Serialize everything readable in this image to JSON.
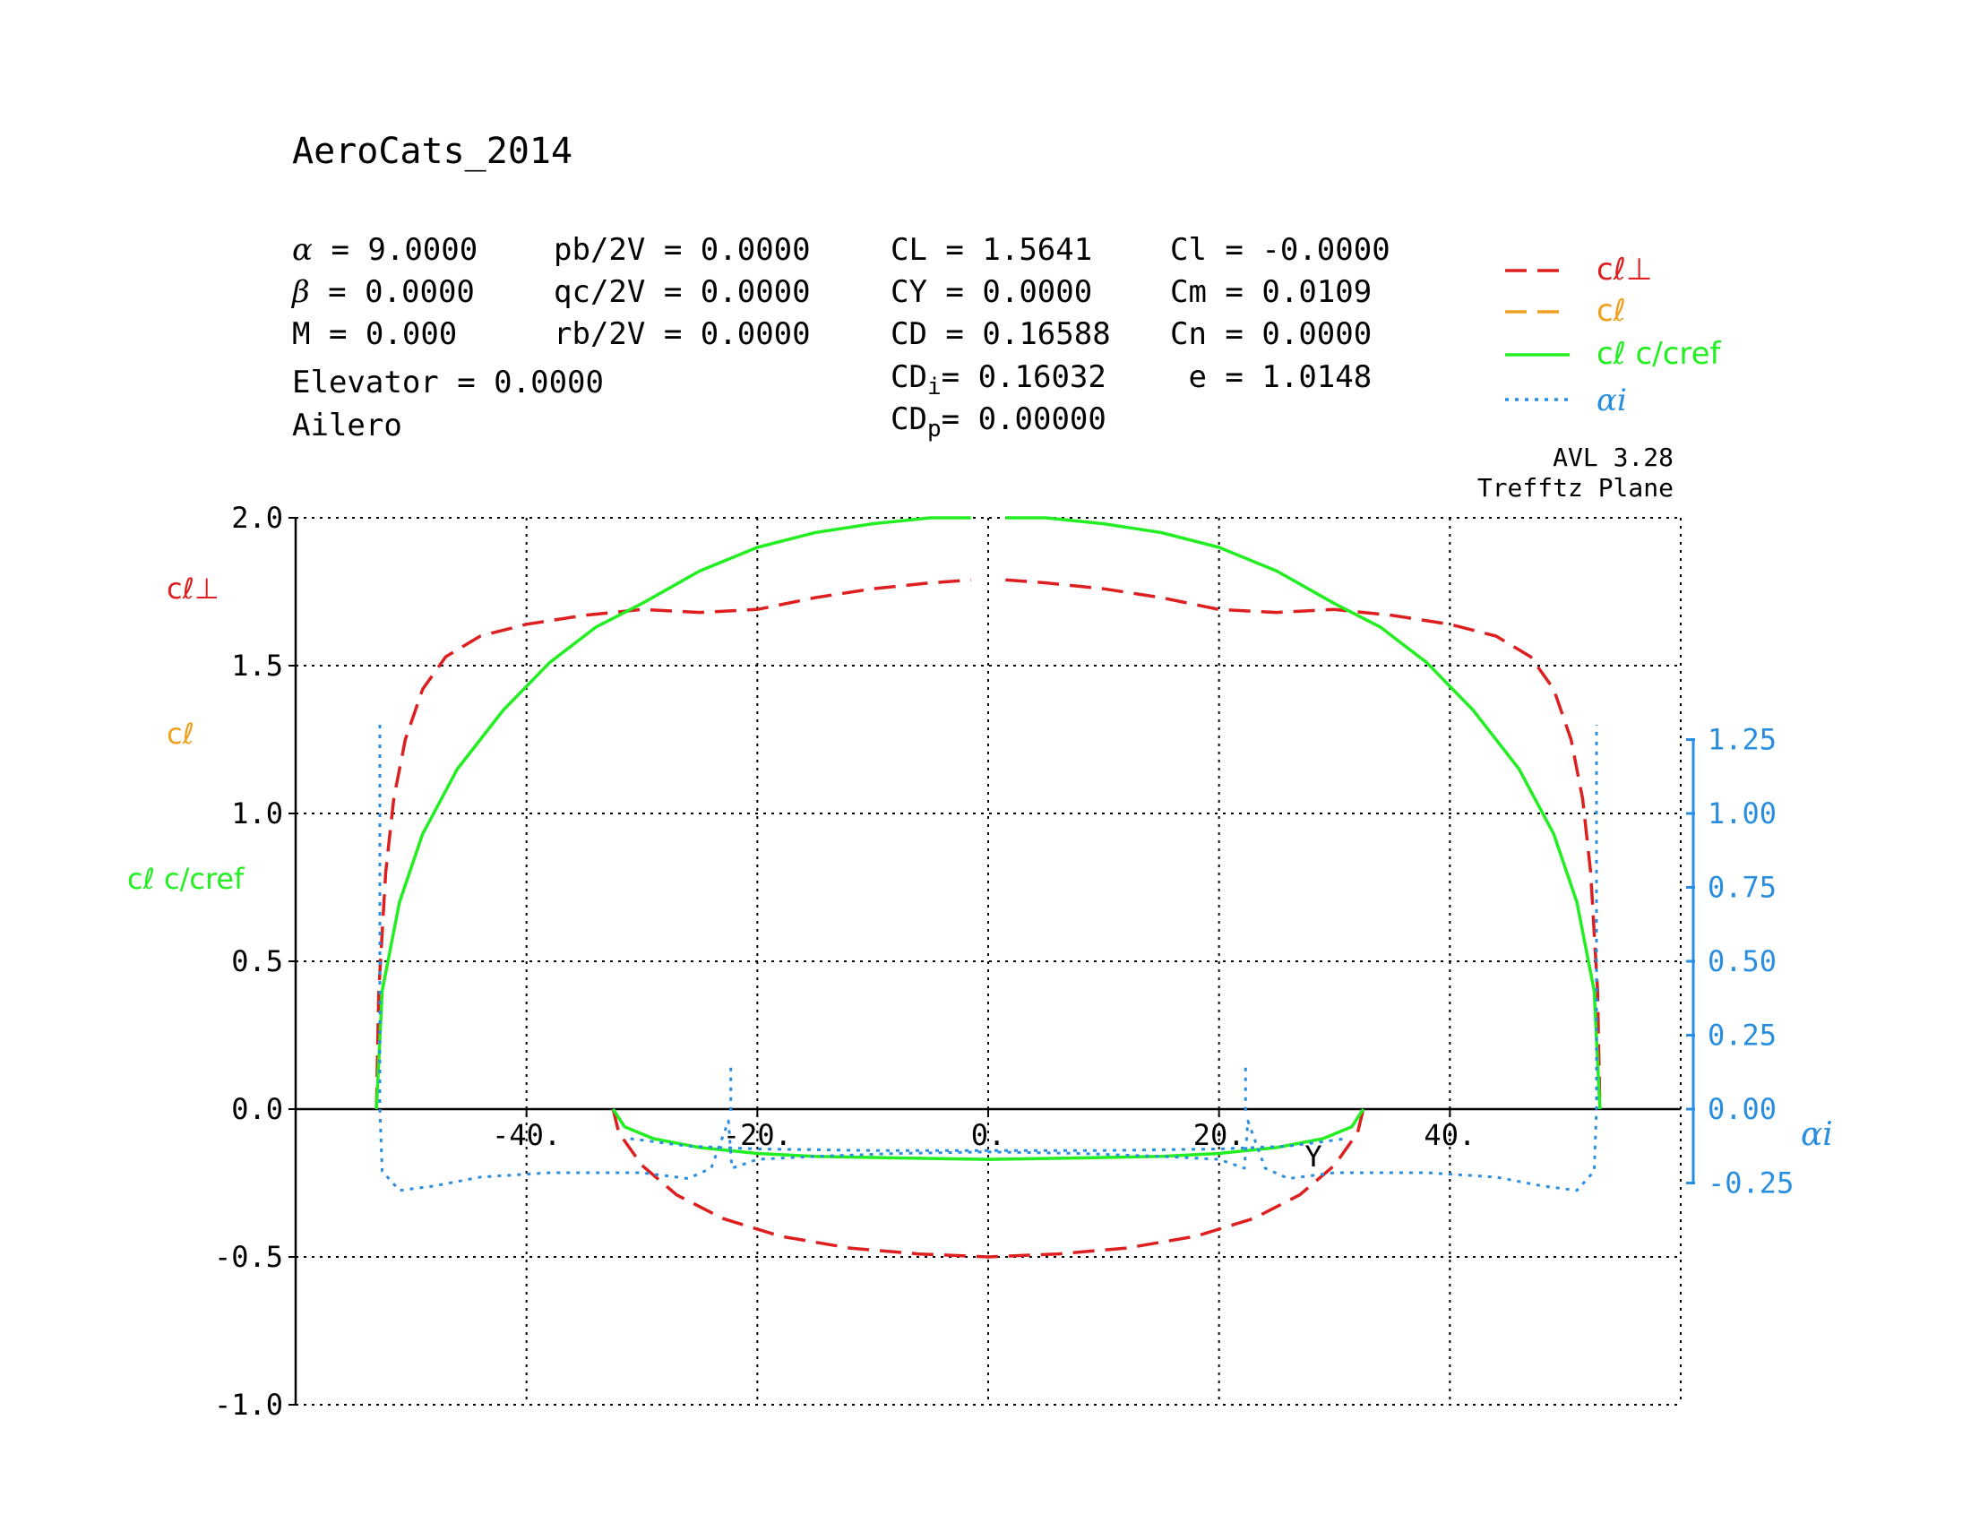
{
  "header": {
    "title": "AeroCats_2014",
    "params_left": [
      {
        "sym": "α",
        "eq": " = ",
        "val": "9.0000"
      },
      {
        "sym": "β",
        "eq": " = ",
        "val": "0.0000"
      },
      {
        "sym": "M",
        "eq": " = ",
        "val": "0.000"
      }
    ],
    "params_rates": [
      {
        "name": "pb/2V",
        "eq": " = ",
        "val": "0.0000"
      },
      {
        "name": "qc/2V",
        "eq": " = ",
        "val": "0.0000"
      },
      {
        "name": "rb/2V",
        "eq": " = ",
        "val": "0.0000"
      }
    ],
    "controls": [
      "Elevator = 0.0000",
      "Ailero"
    ],
    "forces": [
      {
        "base": "CL",
        "sub": "",
        "eq": " = ",
        "val": "1.5641"
      },
      {
        "base": "CY",
        "sub": "",
        "eq": " = ",
        "val": "0.0000"
      },
      {
        "base": "CD",
        "sub": "",
        "eq": " = ",
        "val": "0.16588"
      },
      {
        "base": "CD",
        "sub": "i",
        "eq": "= ",
        "val": "0.16032"
      },
      {
        "base": "CD",
        "sub": "p",
        "eq": "= ",
        "val": "0.00000"
      }
    ],
    "moments": [
      {
        "name": "Cl",
        "eq": " = ",
        "val": "-0.0000"
      },
      {
        "name": "Cm",
        "eq": " = ",
        "val": "0.0109"
      },
      {
        "name": "Cn",
        "eq": " = ",
        "val": "0.0000"
      },
      {
        "name": " e",
        "eq": " = ",
        "val": "1.0148"
      }
    ],
    "version": "AVL 3.28",
    "plot_name": "Trefftz Plane"
  },
  "legend": [
    {
      "label": "cℓ⊥",
      "color": "#dd1f1f",
      "style": "dashed"
    },
    {
      "label": "cℓ",
      "color": "#f0a020",
      "style": "dashed"
    },
    {
      "label": "cℓ c/cref",
      "color": "#22ee22",
      "style": "solid"
    },
    {
      "label": "αi",
      "color": "#2a8ee0",
      "style": "dotted"
    }
  ],
  "chart_data": {
    "type": "line",
    "title": "AeroCats_2014",
    "xlabel": "Y",
    "left_axis_labels": [
      "cℓ⊥",
      "cℓ",
      "cℓ c/cref"
    ],
    "right_axis_label": "αi",
    "xlim": [
      -60,
      60
    ],
    "ylim": [
      -1.0,
      2.0
    ],
    "right_ylim": [
      -0.25,
      1.25
    ],
    "x_ticks": [
      -40,
      -20,
      0,
      20,
      40
    ],
    "x_tick_labels": [
      "-40.",
      "-20.",
      "0.",
      "20.",
      "40."
    ],
    "y_ticks": [
      -1.0,
      -0.5,
      0.0,
      0.5,
      1.0,
      1.5,
      2.0
    ],
    "y_tick_labels": [
      "-1.0",
      "-0.5",
      "0.0",
      "0.5",
      "1.0",
      "1.5",
      "2.0"
    ],
    "right_ticks": [
      -0.25,
      0.0,
      0.25,
      0.5,
      0.75,
      1.0,
      1.25
    ],
    "right_tick_labels": [
      "-0.25",
      "0.00",
      "0.25",
      "0.50",
      "0.75",
      "1.00",
      "1.25"
    ],
    "grid": true,
    "series": [
      {
        "name": "cℓ⊥",
        "color": "#dd1f1f",
        "style": "dashed",
        "axis": "left",
        "segments": [
          [
            [
              -53,
              0.0
            ],
            [
              -52.8,
              0.4
            ],
            [
              -52.2,
              0.8
            ],
            [
              -51.5,
              1.05
            ],
            [
              -50.5,
              1.25
            ],
            [
              -49,
              1.42
            ],
            [
              -47,
              1.53
            ],
            [
              -44,
              1.6
            ],
            [
              -40,
              1.64
            ],
            [
              -35,
              1.67
            ],
            [
              -30,
              1.69
            ],
            [
              -25,
              1.68
            ],
            [
              -20,
              1.69
            ],
            [
              -15,
              1.73
            ],
            [
              -10,
              1.76
            ],
            [
              -5,
              1.78
            ],
            [
              -1.5,
              1.79
            ]
          ],
          [
            [
              1.5,
              1.79
            ],
            [
              5,
              1.78
            ],
            [
              10,
              1.76
            ],
            [
              15,
              1.73
            ],
            [
              20,
              1.69
            ],
            [
              25,
              1.68
            ],
            [
              30,
              1.69
            ],
            [
              35,
              1.67
            ],
            [
              40,
              1.64
            ],
            [
              44,
              1.6
            ],
            [
              47,
              1.53
            ],
            [
              49,
              1.42
            ],
            [
              50.5,
              1.25
            ],
            [
              51.5,
              1.05
            ],
            [
              52.2,
              0.8
            ],
            [
              52.8,
              0.4
            ],
            [
              53,
              0.0
            ]
          ],
          [
            [
              -32.5,
              0.0
            ],
            [
              -32,
              -0.08
            ],
            [
              -30,
              -0.19
            ],
            [
              -27,
              -0.29
            ],
            [
              -23,
              -0.37
            ],
            [
              -18,
              -0.43
            ],
            [
              -12,
              -0.47
            ],
            [
              -6,
              -0.49
            ],
            [
              0,
              -0.5
            ],
            [
              6,
              -0.49
            ],
            [
              12,
              -0.47
            ],
            [
              18,
              -0.43
            ],
            [
              23,
              -0.37
            ],
            [
              27,
              -0.29
            ],
            [
              30,
              -0.19
            ],
            [
              32,
              -0.08
            ],
            [
              32.5,
              0.0
            ]
          ]
        ]
      },
      {
        "name": "cℓ",
        "color": "#f0a020",
        "style": "dashed",
        "axis": "left",
        "segments": []
      },
      {
        "name": "cℓ c/cref",
        "color": "#22ee22",
        "style": "solid",
        "axis": "left",
        "segments": [
          [
            [
              -53,
              0.0
            ],
            [
              -52.5,
              0.4
            ],
            [
              -51,
              0.7
            ],
            [
              -49,
              0.93
            ],
            [
              -46,
              1.15
            ],
            [
              -42,
              1.35
            ],
            [
              -38,
              1.51
            ],
            [
              -34,
              1.63
            ],
            [
              -30,
              1.71
            ],
            [
              -25,
              1.82
            ],
            [
              -20,
              1.9
            ],
            [
              -15,
              1.95
            ],
            [
              -10,
              1.98
            ],
            [
              -5,
              2.0
            ],
            [
              -1.5,
              2.0
            ]
          ],
          [
            [
              1.5,
              2.0
            ],
            [
              5,
              2.0
            ],
            [
              10,
              1.98
            ],
            [
              15,
              1.95
            ],
            [
              20,
              1.9
            ],
            [
              25,
              1.82
            ],
            [
              30,
              1.71
            ],
            [
              34,
              1.63
            ],
            [
              38,
              1.51
            ],
            [
              42,
              1.35
            ],
            [
              46,
              1.15
            ],
            [
              49,
              0.93
            ],
            [
              51,
              0.7
            ],
            [
              52.5,
              0.4
            ],
            [
              53,
              0.0
            ]
          ],
          [
            [
              -32.5,
              0.0
            ],
            [
              -31.5,
              -0.06
            ],
            [
              -29,
              -0.1
            ],
            [
              -25,
              -0.13
            ],
            [
              -20,
              -0.15
            ],
            [
              -15,
              -0.16
            ],
            [
              -8,
              -0.165
            ],
            [
              0,
              -0.17
            ],
            [
              8,
              -0.165
            ],
            [
              15,
              -0.16
            ],
            [
              20,
              -0.15
            ],
            [
              25,
              -0.13
            ],
            [
              29,
              -0.1
            ],
            [
              31.5,
              -0.06
            ],
            [
              32.5,
              0.0
            ]
          ]
        ]
      },
      {
        "name": "αi",
        "color": "#2a8ee0",
        "style": "dotted",
        "axis": "right",
        "segments": [
          [
            [
              -52.7,
              1.3
            ],
            [
              -52.7,
              0.0
            ],
            [
              -52.5,
              -0.21
            ],
            [
              -51,
              -0.275
            ],
            [
              -48,
              -0.26
            ],
            [
              -44,
              -0.23
            ],
            [
              -38,
              -0.215
            ],
            [
              -30,
              -0.215
            ],
            [
              -26,
              -0.235
            ],
            [
              -24,
              -0.2
            ],
            [
              -22.5,
              -0.04
            ],
            [
              -22.2,
              -0.2
            ],
            [
              -20,
              -0.17
            ],
            [
              -15,
              -0.16
            ],
            [
              -8,
              -0.15
            ],
            [
              0,
              -0.145
            ],
            [
              8,
              -0.15
            ],
            [
              15,
              -0.16
            ],
            [
              20,
              -0.17
            ],
            [
              22.2,
              -0.2
            ],
            [
              22.5,
              -0.04
            ],
            [
              24,
              -0.2
            ],
            [
              26,
              -0.235
            ],
            [
              30,
              -0.215
            ],
            [
              38,
              -0.215
            ],
            [
              44,
              -0.23
            ],
            [
              48,
              -0.26
            ],
            [
              51,
              -0.275
            ],
            [
              52.5,
              -0.21
            ],
            [
              52.7,
              0.0
            ],
            [
              52.7,
              1.3
            ]
          ],
          [
            [
              -31,
              -0.1
            ],
            [
              -26,
              -0.125
            ],
            [
              -20,
              -0.135
            ],
            [
              -10,
              -0.14
            ],
            [
              0,
              -0.14
            ],
            [
              10,
              -0.14
            ],
            [
              20,
              -0.135
            ],
            [
              26,
              -0.125
            ],
            [
              31,
              -0.1
            ]
          ],
          [
            [
              -22.3,
              0.14
            ],
            [
              -22.3,
              -0.02
            ]
          ],
          [
            [
              22.3,
              0.14
            ],
            [
              22.3,
              -0.02
            ]
          ]
        ]
      }
    ]
  }
}
